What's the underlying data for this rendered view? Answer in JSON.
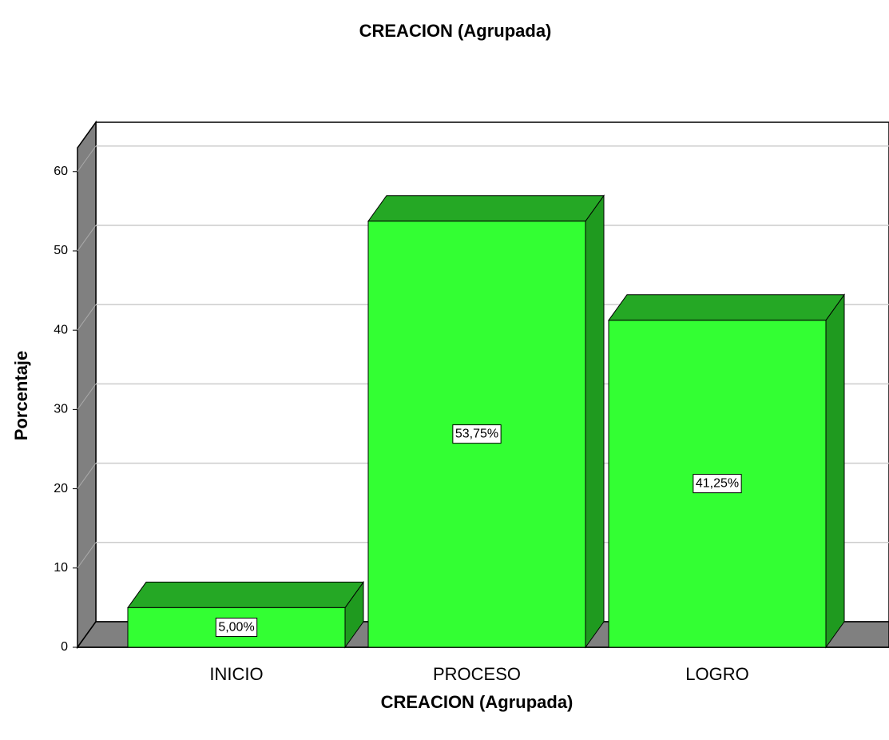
{
  "chart_data": {
    "type": "bar3d",
    "title": "CREACION (Agrupada)",
    "x_label": "CREACION (Agrupada)",
    "y_label": "Porcentaje",
    "categories": [
      "INICIO",
      "PROCESO",
      "LOGRO"
    ],
    "values": [
      5,
      53.75,
      41.25
    ],
    "value_labels": [
      "5,00%",
      "53,75%",
      "41,25%"
    ],
    "color": "#33ff33",
    "ylim": [
      0,
      63
    ],
    "yticks": [
      0,
      10,
      20,
      30,
      40,
      50,
      60
    ],
    "grid": true
  }
}
